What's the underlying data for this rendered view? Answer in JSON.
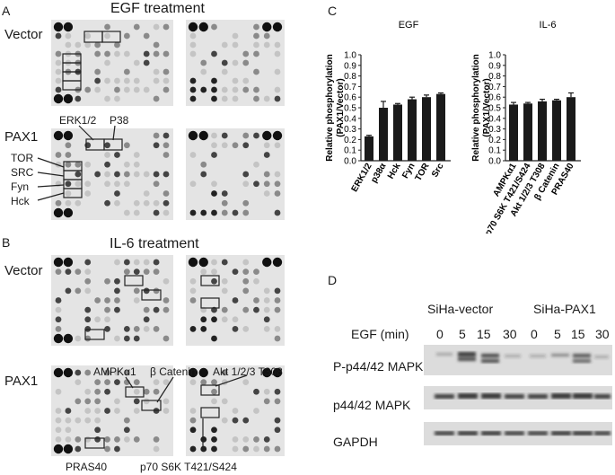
{
  "figure": {
    "panelA": {
      "letter": "A",
      "title": "EGF treatment",
      "row1": "Vector",
      "row2": "PAX1",
      "labels": {
        "erk": "ERK1/2",
        "p38": "P38",
        "tor": "TOR",
        "src": "SRC",
        "fyn": "Fyn",
        "hck": "Hck"
      }
    },
    "panelB": {
      "letter": "B",
      "title": "IL-6 treatment",
      "row1": "Vector",
      "row2": "PAX1",
      "labels": {
        "ampk": "AMPKα1",
        "bcat": "β Catenin",
        "akt": "Akt 1/2/3 T308",
        "pras": "PRAS40",
        "p70": "p70 S6K T421/S424"
      }
    },
    "panelC": {
      "letter": "C"
    },
    "panelD": {
      "letter": "D",
      "groups": [
        "SiHa-vector",
        "SiHa-PAX1"
      ],
      "egf_label": "EGF (min)",
      "times": [
        "0",
        "5",
        "15",
        "30",
        "0",
        "5",
        "15",
        "30"
      ],
      "rows": [
        "P-p44/42 MAPK",
        "p44/42 MAPK",
        "GAPDH"
      ]
    }
  },
  "chart_data": [
    {
      "type": "bar",
      "title": "EGF",
      "ylabel": "Relative phosphorylation (PAX1/Vector)",
      "categories": [
        "ERK1/2",
        "p38α",
        "Hck",
        "Fyn",
        "TOR",
        "Src"
      ],
      "values": [
        0.23,
        0.5,
        0.53,
        0.58,
        0.6,
        0.63
      ],
      "errors": [
        0.01,
        0.06,
        0.01,
        0.02,
        0.02,
        0.01
      ],
      "yticks": [
        "0.0",
        "0.1",
        "0.2",
        "0.3",
        "0.4",
        "0.5",
        "0.6",
        "0.7",
        "0.8",
        "0.9",
        "1.0"
      ],
      "ylim": [
        0,
        1.0
      ],
      "color": "#1a1a1a"
    },
    {
      "type": "bar",
      "title": "IL-6",
      "ylabel": "Relative phosphorylation (PAX1/Vector)",
      "categories": [
        "AMPKα1",
        "p70 S6K T421/S424",
        "Akt 1/2/3 T308",
        "β Catenin",
        "PRAS40"
      ],
      "values": [
        0.53,
        0.54,
        0.56,
        0.57,
        0.6
      ],
      "errors": [
        0.02,
        0.01,
        0.02,
        0.01,
        0.04
      ],
      "yticks": [
        "0.0",
        "0.1",
        "0.2",
        "0.3",
        "0.4",
        "0.5",
        "0.6",
        "0.7",
        "0.8",
        "0.9",
        "1.0"
      ],
      "ylim": [
        0,
        1.0
      ],
      "color": "#1a1a1a"
    }
  ]
}
